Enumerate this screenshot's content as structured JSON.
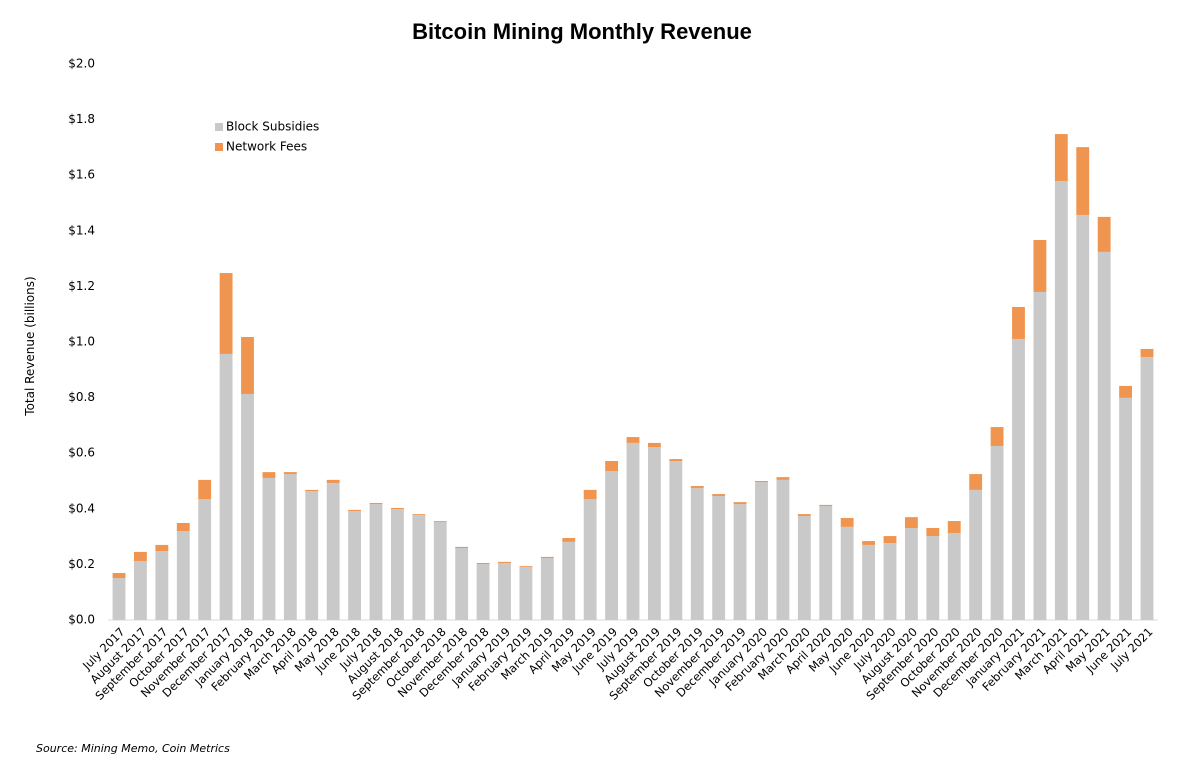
{
  "chart_data": {
    "type": "bar",
    "stacked": true,
    "title": "Bitcoin Mining Monthly Revenue",
    "y_label": "Total Revenue (billions)",
    "source": "Source: Mining Memo, Coin Metrics",
    "categories": [
      "July 2017",
      "August 2017",
      "September 2017",
      "October 2017",
      "November 2017",
      "December 2017",
      "January 2018",
      "February 2018",
      "March 2018",
      "April 2018",
      "May 2018",
      "June 2018",
      "July 2018",
      "August 2018",
      "September 2018",
      "October 2018",
      "November 2018",
      "December 2018",
      "January 2019",
      "February 2019",
      "March 2019",
      "April 2019",
      "May 2019",
      "June 2019",
      "July 2019",
      "August 2019",
      "September 2019",
      "October 2019",
      "November 2019",
      "December 2019",
      "January 2020",
      "February 2020",
      "March 2020",
      "April 2020",
      "May 2020",
      "June 2020",
      "July 2020",
      "August 2020",
      "September 2020",
      "October 2020",
      "November 2020",
      "December 2020",
      "January 2021",
      "February 2021",
      "March 2021",
      "April 2021",
      "May 2021",
      "June 2021",
      "July 2021"
    ],
    "series": [
      {
        "name": "Block Subsidies",
        "color": "#c9c9c9",
        "values": [
          0.151,
          0.212,
          0.248,
          0.32,
          0.435,
          0.957,
          0.813,
          0.511,
          0.525,
          0.464,
          0.493,
          0.392,
          0.417,
          0.399,
          0.378,
          0.353,
          0.259,
          0.201,
          0.205,
          0.191,
          0.223,
          0.281,
          0.435,
          0.536,
          0.637,
          0.622,
          0.572,
          0.475,
          0.446,
          0.417,
          0.496,
          0.504,
          0.374,
          0.41,
          0.335,
          0.27,
          0.277,
          0.331,
          0.302,
          0.313,
          0.468,
          0.626,
          1.011,
          1.18,
          1.579,
          1.457,
          1.324,
          0.799,
          0.946
        ]
      },
      {
        "name": "Network Fees",
        "color": "#f0954f",
        "values": [
          0.018,
          0.033,
          0.022,
          0.029,
          0.069,
          0.291,
          0.205,
          0.021,
          0.007,
          0.004,
          0.011,
          0.004,
          0.004,
          0.004,
          0.003,
          0.003,
          0.004,
          0.004,
          0.004,
          0.003,
          0.004,
          0.014,
          0.033,
          0.036,
          0.021,
          0.015,
          0.007,
          0.007,
          0.007,
          0.007,
          0.004,
          0.01,
          0.007,
          0.004,
          0.032,
          0.014,
          0.025,
          0.039,
          0.029,
          0.043,
          0.057,
          0.068,
          0.115,
          0.187,
          0.169,
          0.244,
          0.126,
          0.043,
          0.029
        ]
      }
    ],
    "ylim": [
      0,
      2.0
    ],
    "yticks": [
      {
        "value": 0,
        "label": "$0.0"
      },
      {
        "value": 0.2,
        "label": "$0.2"
      },
      {
        "value": 0.4,
        "label": "$0.4"
      },
      {
        "value": 0.6,
        "label": "$0.6"
      },
      {
        "value": 0.8,
        "label": "$0.8"
      },
      {
        "value": 1.0,
        "label": "$1.0"
      },
      {
        "value": 1.2,
        "label": "$1.2"
      },
      {
        "value": 1.4,
        "label": "$1.4"
      },
      {
        "value": 1.6,
        "label": "$1.6"
      },
      {
        "value": 1.8,
        "label": "$1.8"
      },
      {
        "value": 2.0,
        "label": "$2.0"
      }
    ],
    "grid": false,
    "legend": "upper left"
  }
}
